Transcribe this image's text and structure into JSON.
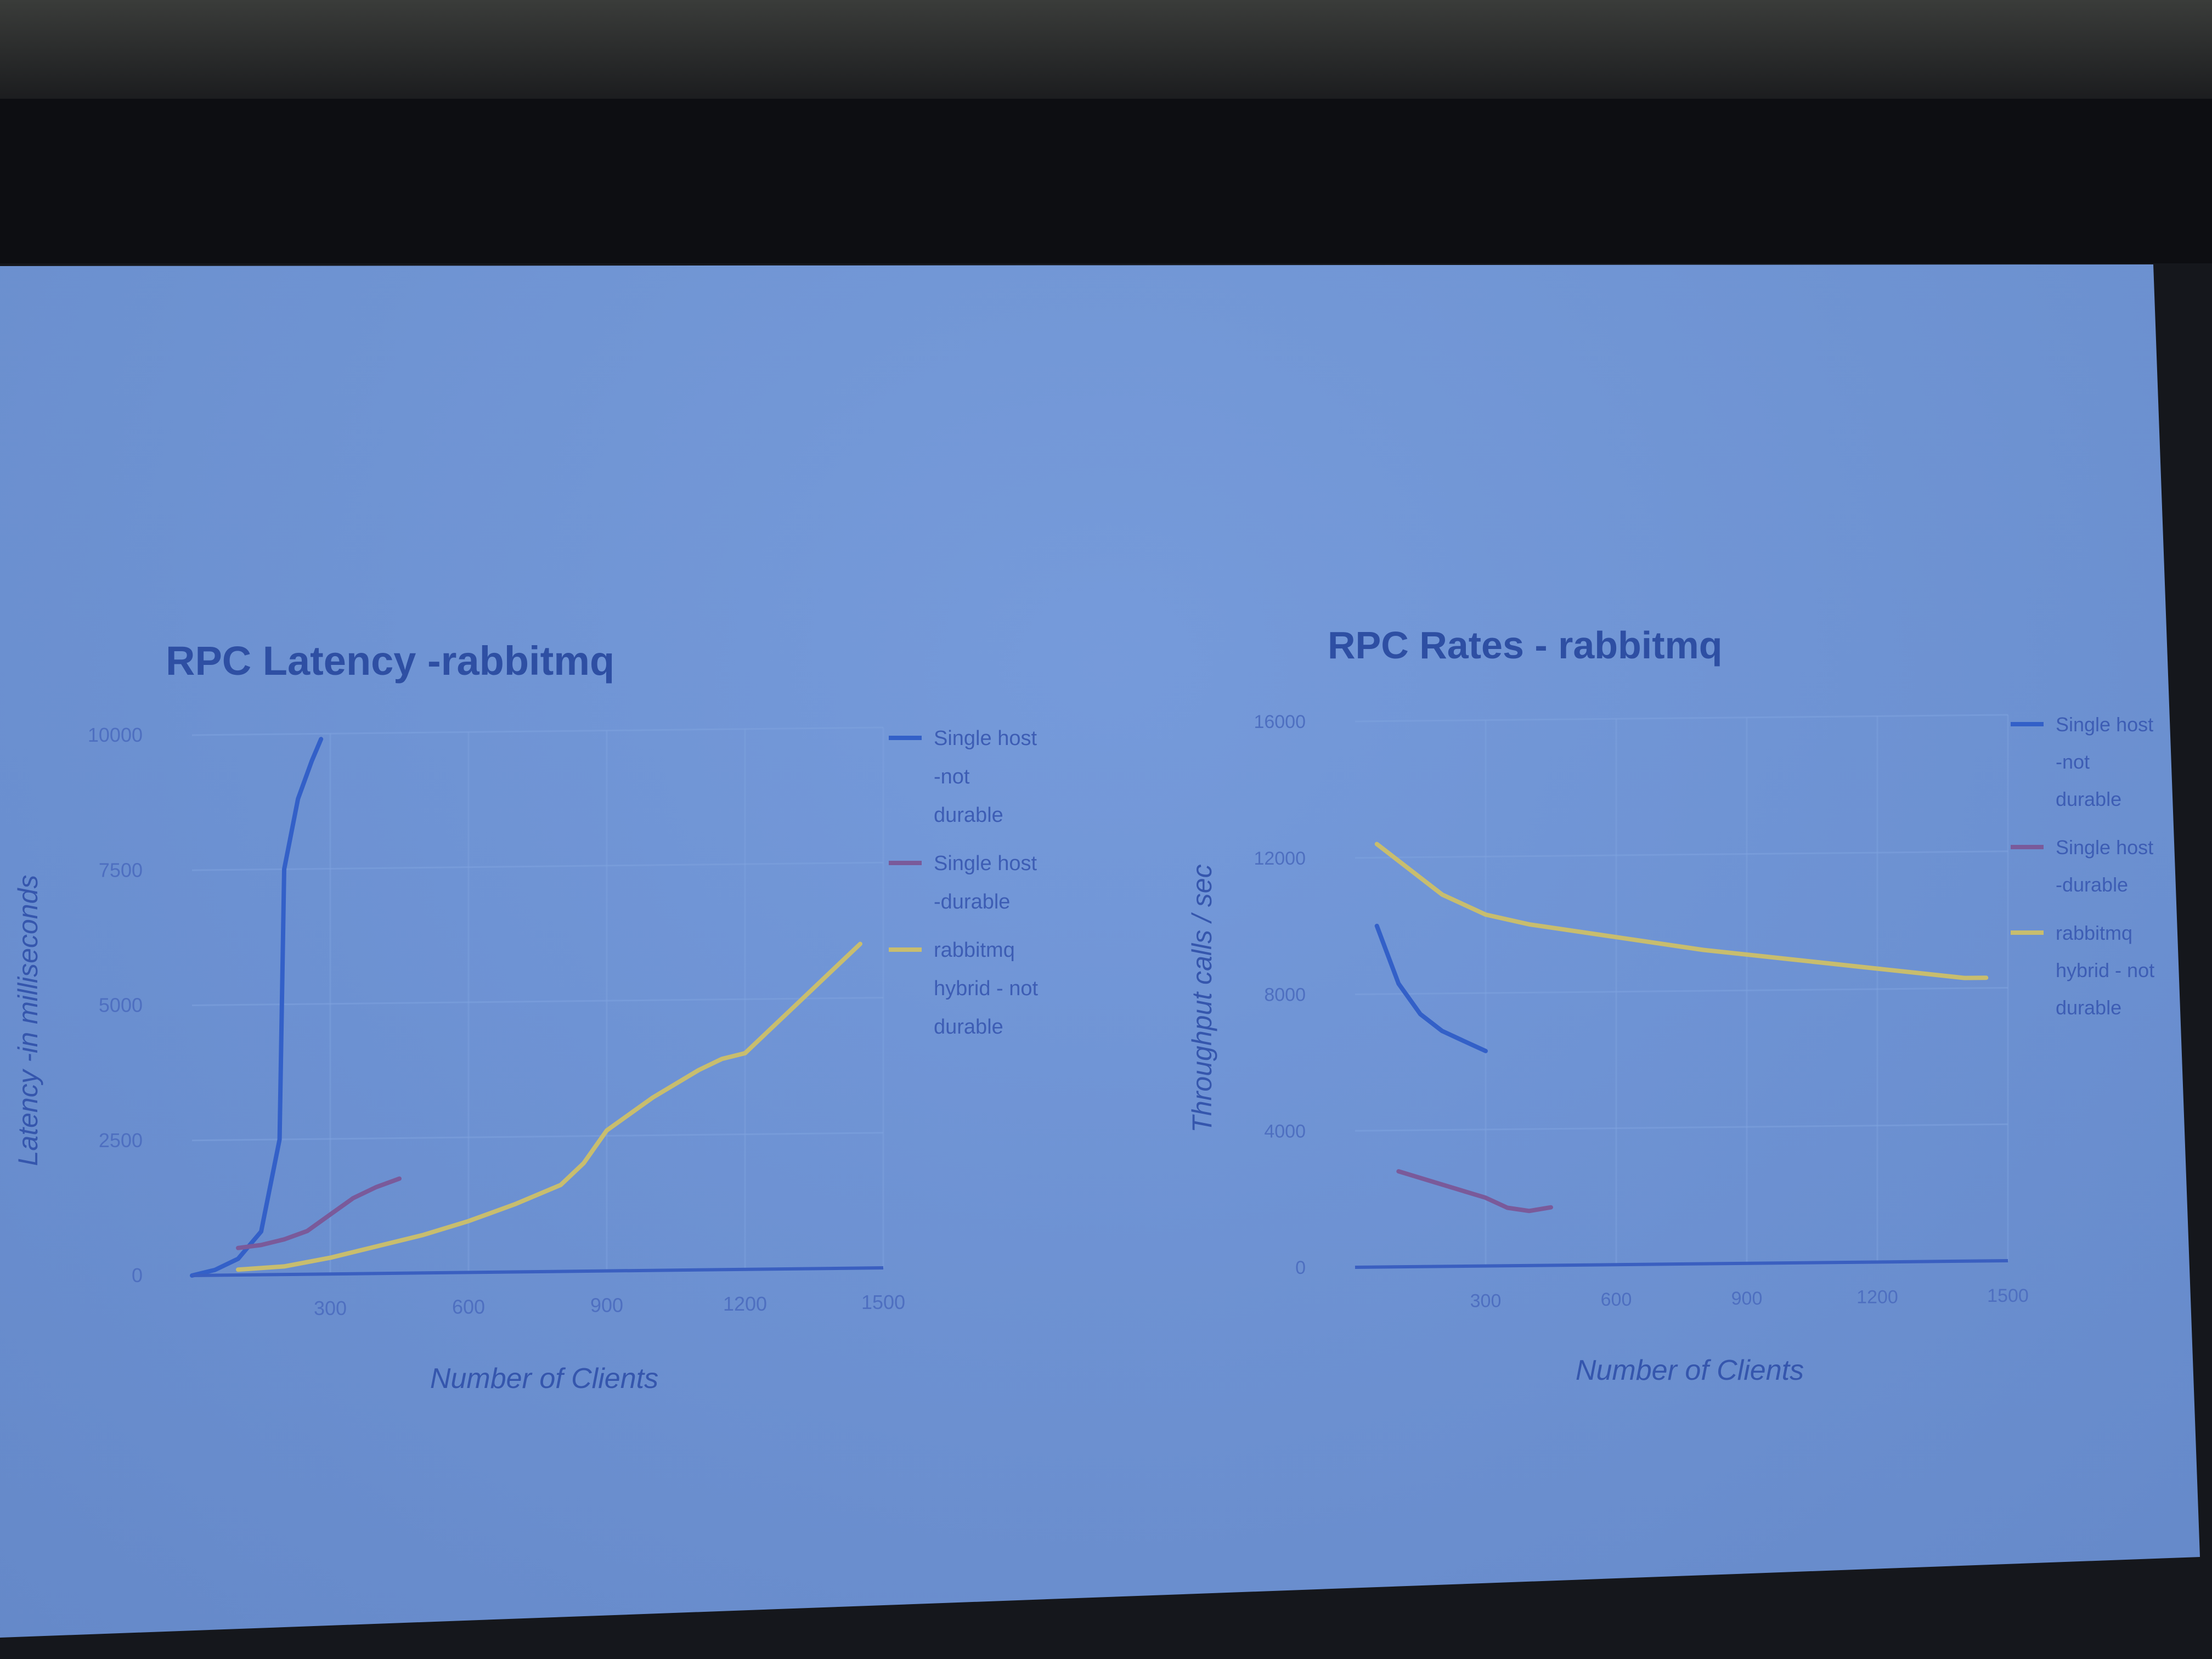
{
  "chart_data": [
    {
      "type": "line",
      "title": "RPC Latency -rabbitmq",
      "xlabel": "Number of Clients",
      "ylabel": "Latency -in milliseconds",
      "xlim": [
        0,
        1500
      ],
      "ylim": [
        0,
        10000
      ],
      "xticks": [
        "300",
        "600",
        "900",
        "1200",
        "1500"
      ],
      "yticks": [
        "0",
        "2500",
        "5000",
        "7500",
        "10000"
      ],
      "grid": true,
      "legend": "right",
      "series": [
        {
          "name": "Single host -not durable",
          "color": "#3360c8",
          "x": [
            0,
            50,
            100,
            150,
            190,
            200,
            230,
            260,
            280
          ],
          "y": [
            0,
            100,
            300,
            800,
            2500,
            7500,
            8800,
            9500,
            9900
          ]
        },
        {
          "name": "Single host -durable",
          "color": "#7a5a9a",
          "x": [
            100,
            150,
            200,
            250,
            300,
            350,
            400,
            450
          ],
          "y": [
            500,
            550,
            650,
            800,
            1100,
            1400,
            1600,
            1750
          ]
        },
        {
          "name": "rabbitmq hybrid - not durable",
          "color": "#c8bd6e",
          "x": [
            100,
            200,
            300,
            400,
            500,
            600,
            700,
            800,
            850,
            900,
            1000,
            1100,
            1150,
            1200,
            1300,
            1400,
            1450
          ],
          "y": [
            100,
            150,
            300,
            500,
            700,
            950,
            1250,
            1600,
            2000,
            2600,
            3200,
            3700,
            3900,
            4000,
            4800,
            5600,
            6000
          ]
        }
      ]
    },
    {
      "type": "line",
      "title": "RPC Rates - rabbitmq",
      "xlabel": "Number of Clients",
      "ylabel": "Throughput calls / sec",
      "xlim": [
        0,
        1500
      ],
      "ylim": [
        0,
        16000
      ],
      "xticks": [
        "300",
        "600",
        "900",
        "1200",
        "1500"
      ],
      "yticks": [
        "0",
        "4000",
        "8000",
        "12000",
        "16000"
      ],
      "grid": true,
      "legend": "right",
      "series": [
        {
          "name": "Single host -not durable",
          "color": "#3360c8",
          "x": [
            50,
            100,
            150,
            200,
            250,
            300
          ],
          "y": [
            10000,
            8300,
            7400,
            6900,
            6600,
            6300
          ]
        },
        {
          "name": "Single host -durable",
          "color": "#7a5a9a",
          "x": [
            100,
            200,
            300,
            350,
            400,
            450
          ],
          "y": [
            2800,
            2400,
            2000,
            1700,
            1600,
            1700
          ]
        },
        {
          "name": "rabbitmq hybrid - not durable",
          "color": "#c8bd6e",
          "x": [
            50,
            200,
            300,
            400,
            600,
            800,
            1000,
            1200,
            1400,
            1450
          ],
          "y": [
            12400,
            10900,
            10300,
            10000,
            9600,
            9200,
            8900,
            8600,
            8300,
            8300
          ]
        }
      ]
    }
  ],
  "colors": {
    "axis": "#3a5fc0",
    "grid": "#7fa3df",
    "tick_text": "#4e6fc0",
    "title_text": "#2e4fa3"
  }
}
